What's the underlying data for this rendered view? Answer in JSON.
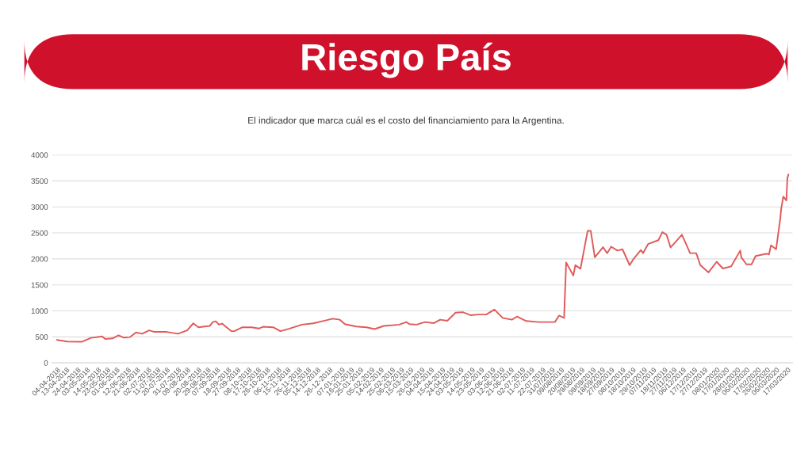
{
  "chart_data": {
    "type": "line",
    "title": "Riesgo País",
    "subtitle": "El indicador que marca cuál es el costo del financiamiento para la Argentina.",
    "x": [
      "2018-04-04",
      "2018-04-14",
      "2018-04-28",
      "2018-05-07",
      "2018-05-18",
      "2018-05-21",
      "2018-05-28",
      "2018-06-03",
      "2018-06-08",
      "2018-06-14",
      "2018-06-20",
      "2018-06-26",
      "2018-07-03",
      "2018-07-08",
      "2018-07-20",
      "2018-07-31",
      "2018-08-09",
      "2018-08-15",
      "2018-08-20",
      "2018-08-31",
      "2018-09-03",
      "2018-09-06",
      "2018-09-09",
      "2018-09-12",
      "2018-09-21",
      "2018-09-24",
      "2018-10-02",
      "2018-10-11",
      "2018-10-18",
      "2018-10-22",
      "2018-11-01",
      "2018-11-08",
      "2018-11-17",
      "2018-11-29",
      "2018-12-10",
      "2018-12-22",
      "2018-12-29",
      "2019-01-05",
      "2019-01-10",
      "2019-01-21",
      "2019-01-31",
      "2019-02-08",
      "2019-02-17",
      "2019-03-04",
      "2019-03-11",
      "2019-03-14",
      "2019-03-21",
      "2019-03-29",
      "2019-04-07",
      "2019-04-13",
      "2019-04-20",
      "2019-04-28",
      "2019-05-05",
      "2019-05-13",
      "2019-05-20",
      "2019-05-28",
      "2019-06-05",
      "2019-06-13",
      "2019-06-22",
      "2019-06-27",
      "2019-07-06",
      "2019-07-18",
      "2019-08-03",
      "2019-08-07",
      "2019-08-12",
      "2019-08-14",
      "2019-08-21",
      "2019-08-23",
      "2019-08-28",
      "2019-09-04",
      "2019-09-07",
      "2019-09-11",
      "2019-09-19",
      "2019-09-23",
      "2019-09-27",
      "2019-10-03",
      "2019-10-08",
      "2019-10-15",
      "2019-10-19",
      "2019-10-26",
      "2019-10-28",
      "2019-11-02",
      "2019-11-12",
      "2019-11-16",
      "2019-11-20",
      "2019-11-24",
      "2019-11-28",
      "2019-12-05",
      "2019-12-08",
      "2019-12-13",
      "2019-12-19",
      "2019-12-23",
      "2019-12-31",
      "2020-01-08",
      "2020-01-14",
      "2020-01-22",
      "2020-01-31",
      "2020-02-01",
      "2020-02-06",
      "2020-02-11",
      "2020-02-15",
      "2020-02-26",
      "2020-02-28",
      "2020-03-01",
      "2020-03-06",
      "2020-03-10",
      "2020-03-11",
      "2020-03-13",
      "2020-03-16",
      "2020-03-17",
      "2020-03-18"
    ],
    "series": [
      {
        "color": "#e05a5a",
        "values": [
          440,
          410,
          405,
          480,
          510,
          460,
          470,
          530,
          485,
          495,
          585,
          560,
          625,
          595,
          595,
          560,
          625,
          760,
          685,
          710,
          785,
          800,
          735,
          755,
          610,
          610,
          685,
          685,
          660,
          695,
          685,
          610,
          660,
          735,
          760,
          815,
          850,
          830,
          745,
          700,
          685,
          650,
          710,
          735,
          785,
          745,
          735,
          785,
          765,
          830,
          810,
          965,
          975,
          915,
          930,
          930,
          1025,
          865,
          830,
          890,
          805,
          785,
          785,
          910,
          865,
          1930,
          1680,
          1880,
          1810,
          2540,
          2540,
          2030,
          2225,
          2110,
          2235,
          2160,
          2185,
          1880,
          2005,
          2170,
          2110,
          2285,
          2360,
          2515,
          2465,
          2220,
          2310,
          2465,
          2335,
          2110,
          2110,
          1880,
          1740,
          1945,
          1815,
          1855,
          2160,
          2030,
          1895,
          1895,
          2055,
          2100,
          2085,
          2260,
          2185,
          2770,
          2970,
          3200,
          3125,
          3555,
          3620
        ]
      }
    ],
    "xlim": [
      "2018-03-30",
      "2020-03-22"
    ],
    "xticks": [
      {
        "value": "2018-04-04",
        "label": "04-04-2018"
      },
      {
        "value": "2018-04-13",
        "label": "13-04-2018"
      },
      {
        "value": "2018-04-24",
        "label": "24-04-2018"
      },
      {
        "value": "2018-05-03",
        "label": "03-05-2018"
      },
      {
        "value": "2018-05-14",
        "label": "14-05-2018"
      },
      {
        "value": "2018-05-23",
        "label": "23-05-2018"
      },
      {
        "value": "2018-06-01",
        "label": "01-06-2018"
      },
      {
        "value": "2018-06-12",
        "label": "12-06-2018"
      },
      {
        "value": "2018-06-21",
        "label": "21-06-2018"
      },
      {
        "value": "2018-07-02",
        "label": "02-07-2018"
      },
      {
        "value": "2018-07-11",
        "label": "11-07-2018"
      },
      {
        "value": "2018-07-20",
        "label": "20-07-2018"
      },
      {
        "value": "2018-07-31",
        "label": "31-07-2018"
      },
      {
        "value": "2018-08-09",
        "label": "09-08-2018"
      },
      {
        "value": "2018-08-20",
        "label": "20-08-2018"
      },
      {
        "value": "2018-08-29",
        "label": "29-08-2018"
      },
      {
        "value": "2018-09-07",
        "label": "07-09-2018"
      },
      {
        "value": "2018-09-18",
        "label": "18-09-2018"
      },
      {
        "value": "2018-09-27",
        "label": "27-09-2018"
      },
      {
        "value": "2018-10-08",
        "label": "08-10-2018"
      },
      {
        "value": "2018-10-17",
        "label": "17-10-2018"
      },
      {
        "value": "2018-10-26",
        "label": "26-10-2018"
      },
      {
        "value": "2018-11-06",
        "label": "06-11-2018"
      },
      {
        "value": "2018-11-15",
        "label": "15-11-2018"
      },
      {
        "value": "2018-11-26",
        "label": "26-11-2018"
      },
      {
        "value": "2018-12-05",
        "label": "05-12-2018"
      },
      {
        "value": "2018-12-14",
        "label": "14-12-2018"
      },
      {
        "value": "2018-12-26",
        "label": "26-12-2018"
      },
      {
        "value": "2019-01-07",
        "label": "07-01-2019"
      },
      {
        "value": "2019-01-16",
        "label": "16-01-2019"
      },
      {
        "value": "2019-01-25",
        "label": "25-01-2019"
      },
      {
        "value": "2019-02-05",
        "label": "05-02-2019"
      },
      {
        "value": "2019-02-14",
        "label": "14-02-2019"
      },
      {
        "value": "2019-02-25",
        "label": "25-02-2019"
      },
      {
        "value": "2019-03-06",
        "label": "06-03-2019"
      },
      {
        "value": "2019-03-15",
        "label": "15-03-2019"
      },
      {
        "value": "2019-03-26",
        "label": "26-03-2019"
      },
      {
        "value": "2019-04-04",
        "label": "04-04-2019"
      },
      {
        "value": "2019-04-15",
        "label": "15-04-2019"
      },
      {
        "value": "2019-04-24",
        "label": "24-04-2019"
      },
      {
        "value": "2019-05-03",
        "label": "03-05-2019"
      },
      {
        "value": "2019-05-14",
        "label": "14-05-2019"
      },
      {
        "value": "2019-05-23",
        "label": "23-05-2019"
      },
      {
        "value": "2019-06-03",
        "label": "03-06-2019"
      },
      {
        "value": "2019-06-12",
        "label": "12-06-2019"
      },
      {
        "value": "2019-06-21",
        "label": "21-06-2019"
      },
      {
        "value": "2019-07-02",
        "label": "02-07-2019"
      },
      {
        "value": "2019-07-11",
        "label": "11-07-2019"
      },
      {
        "value": "2019-07-22",
        "label": "22-07-2019"
      },
      {
        "value": "2019-07-31",
        "label": "31/07/2019"
      },
      {
        "value": "2019-08-09",
        "label": "09/08/2019"
      },
      {
        "value": "2019-08-20",
        "label": "20/08/2019"
      },
      {
        "value": "2019-08-29",
        "label": "29/08/2019"
      },
      {
        "value": "2019-09-09",
        "label": "09/09/2019"
      },
      {
        "value": "2019-09-18",
        "label": "18/09/2019"
      },
      {
        "value": "2019-09-27",
        "label": "27/09/2019"
      },
      {
        "value": "2019-10-08",
        "label": "08/10/2019"
      },
      {
        "value": "2019-10-18",
        "label": "18/10/2019"
      },
      {
        "value": "2019-10-29",
        "label": "29/10/2019"
      },
      {
        "value": "2019-11-07",
        "label": "07/11/2019"
      },
      {
        "value": "2019-11-18",
        "label": "18/11/2019"
      },
      {
        "value": "2019-11-27",
        "label": "27/11/2019"
      },
      {
        "value": "2019-12-06",
        "label": "06/12/2019"
      },
      {
        "value": "2019-12-17",
        "label": "17/12/2019"
      },
      {
        "value": "2019-12-27",
        "label": "27/12/2019"
      },
      {
        "value": "2020-01-08",
        "label": "08/01/2020"
      },
      {
        "value": "2020-01-17",
        "label": "17/01/2020"
      },
      {
        "value": "2020-01-28",
        "label": "28/01/2020"
      },
      {
        "value": "2020-02-06",
        "label": "06/02/2020"
      },
      {
        "value": "2020-02-17",
        "label": "17/02/2020"
      },
      {
        "value": "2020-02-26",
        "label": "26/02/2020"
      },
      {
        "value": "2020-03-06",
        "label": "06/03/2020"
      },
      {
        "value": "2020-03-17",
        "label": "17/03/2020"
      }
    ],
    "ylim": [
      0,
      4000
    ],
    "yticks": [
      0,
      500,
      1000,
      1500,
      2000,
      2500,
      3000,
      3500,
      4000
    ],
    "grid": "y",
    "legend": false,
    "marker": "none",
    "line_style": "solid"
  }
}
